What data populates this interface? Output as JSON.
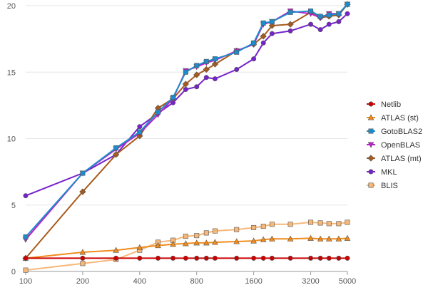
{
  "chart_data": {
    "type": "line",
    "title": "",
    "xlabel": "",
    "ylabel": "",
    "x_scale": "log2",
    "xlim": [
      100,
      5000
    ],
    "ylim": [
      0,
      20
    ],
    "x_ticks": [
      100,
      200,
      400,
      800,
      1600,
      3200,
      5000
    ],
    "x_tick_labels": [
      "100",
      "200",
      "400",
      "800",
      "1600",
      "3200",
      "5000"
    ],
    "y_ticks": [
      0,
      5,
      10,
      15,
      20
    ],
    "y_tick_labels": [
      "0",
      "5",
      "10",
      "15",
      "20"
    ],
    "grid": "horizontal",
    "legend_position": "right",
    "x": [
      100,
      200,
      300,
      400,
      500,
      600,
      700,
      800,
      900,
      1000,
      1300,
      1600,
      1800,
      2000,
      2500,
      3200,
      3600,
      4000,
      4500,
      5000
    ],
    "series": [
      {
        "name": "Netlib",
        "color": "#cc0000",
        "marker": "circle",
        "values": [
          1.0,
          1.0,
          1.0,
          1.0,
          1.0,
          1.0,
          1.0,
          1.0,
          1.0,
          1.0,
          1.0,
          1.0,
          1.0,
          1.0,
          1.0,
          1.0,
          1.0,
          1.0,
          1.0,
          1.0
        ]
      },
      {
        "name": "ATLAS (st)",
        "color": "#f08c1e",
        "marker": "triangle-up",
        "values": [
          1.0,
          1.45,
          1.6,
          1.8,
          1.95,
          2.05,
          2.1,
          2.15,
          2.15,
          2.2,
          2.25,
          2.3,
          2.4,
          2.45,
          2.45,
          2.5,
          2.45,
          2.45,
          2.45,
          2.5
        ]
      },
      {
        "name": "GotoBLAS2",
        "color": "#1e8ccc",
        "marker": "square",
        "values": [
          2.6,
          7.4,
          9.3,
          10.5,
          12.0,
          13.1,
          15.0,
          15.5,
          15.8,
          16.0,
          16.5,
          17.2,
          18.7,
          18.8,
          19.5,
          19.6,
          19.2,
          19.3,
          19.4,
          20.1
        ]
      },
      {
        "name": "OpenBLAS",
        "color": "#bb22cc",
        "marker": "triangle-down",
        "values": [
          2.4,
          7.4,
          9.2,
          10.4,
          11.8,
          13.0,
          15.1,
          15.4,
          15.7,
          15.9,
          16.6,
          17.1,
          18.6,
          18.8,
          19.6,
          19.4,
          19.1,
          19.4,
          19.4,
          20.1
        ]
      },
      {
        "name": "ATLAS (mt)",
        "color": "#a65a1e",
        "marker": "diamond",
        "values": [
          1.0,
          6.0,
          8.8,
          10.2,
          12.3,
          13.0,
          14.1,
          14.8,
          15.2,
          15.6,
          16.6,
          17.1,
          17.7,
          18.5,
          18.6,
          19.5,
          19.1,
          19.2,
          19.3,
          20.1
        ]
      },
      {
        "name": "MKL",
        "color": "#7722cc",
        "marker": "circle",
        "values": [
          5.7,
          7.4,
          8.8,
          10.9,
          11.9,
          12.7,
          13.7,
          13.9,
          14.6,
          14.5,
          15.2,
          16.0,
          17.2,
          17.9,
          18.1,
          18.6,
          18.2,
          18.6,
          18.8,
          19.4
        ]
      },
      {
        "name": "BLIS",
        "color": "#f5b87a",
        "marker": "square",
        "values": [
          0.1,
          0.6,
          0.9,
          1.6,
          2.2,
          2.35,
          2.65,
          2.7,
          2.9,
          3.05,
          3.15,
          3.3,
          3.4,
          3.55,
          3.55,
          3.7,
          3.65,
          3.6,
          3.6,
          3.7
        ]
      }
    ]
  }
}
